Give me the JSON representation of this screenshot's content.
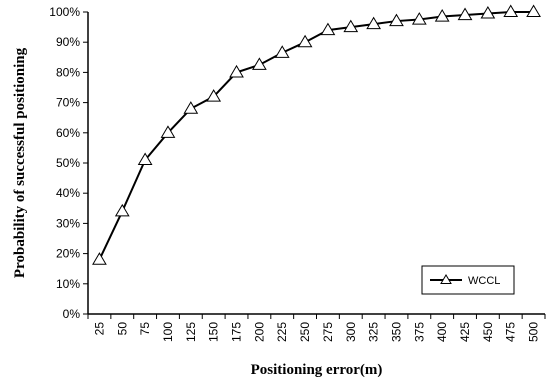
{
  "chart_data": {
    "type": "line",
    "title": "",
    "xlabel": "Positioning error(m)",
    "ylabel": "Probability of successful positioning",
    "categories": [
      "25",
      "50",
      "75",
      "100",
      "125",
      "150",
      "175",
      "200",
      "225",
      "250",
      "275",
      "300",
      "325",
      "350",
      "375",
      "400",
      "425",
      "450",
      "475",
      "500"
    ],
    "y_tick_labels": [
      "0%",
      "10%",
      "20%",
      "30%",
      "40%",
      "50%",
      "60%",
      "70%",
      "80%",
      "90%",
      "100%"
    ],
    "ylim": [
      0,
      100
    ],
    "grid": false,
    "legend_position": "bottom-right",
    "series": [
      {
        "name": "WCCL",
        "marker": "triangle",
        "color": "#000000",
        "values": [
          18,
          34,
          51,
          60,
          68,
          72,
          80,
          82.5,
          86.5,
          90,
          94,
          95,
          96,
          97,
          97.5,
          98.5,
          99,
          99.5,
          100,
          100
        ]
      }
    ]
  }
}
